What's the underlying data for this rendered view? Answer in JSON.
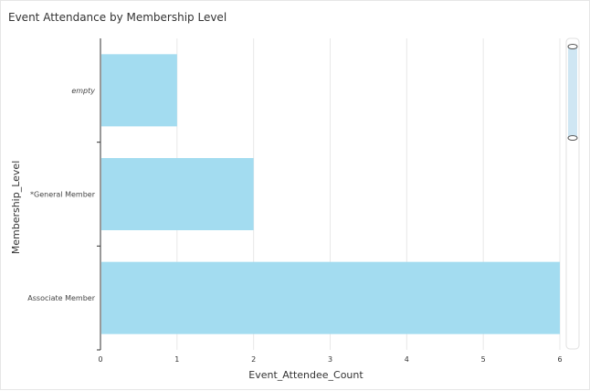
{
  "chart_data": {
    "type": "bar",
    "orientation": "horizontal",
    "title": "Event Attendance by Membership Level",
    "xlabel": "Event_Attendee_Count",
    "ylabel": "Membership_Level",
    "categories": [
      "empty",
      "*General Member",
      "Associate Member"
    ],
    "values": [
      1,
      2,
      6
    ],
    "xlim": [
      0,
      6
    ],
    "xticks": [
      "0",
      "1",
      "2",
      "3",
      "4",
      "5",
      "6"
    ],
    "bar_color": "#a3dcf0",
    "grid": "vertical",
    "legend": "none"
  },
  "scrollbar": {
    "icon": "range-scrollbar"
  }
}
